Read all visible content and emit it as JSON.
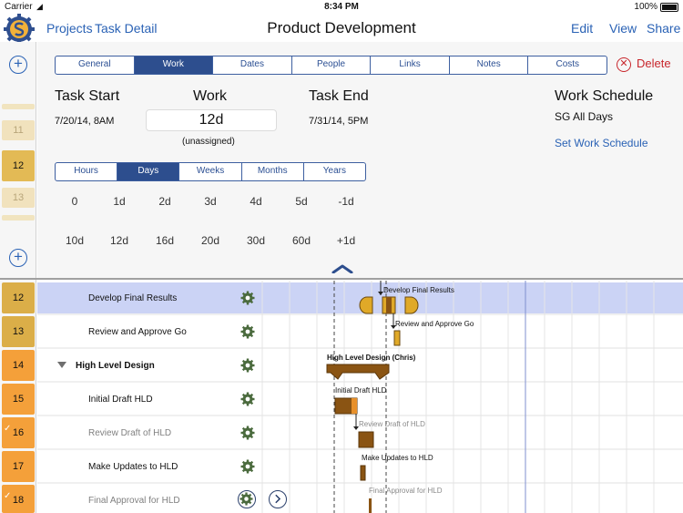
{
  "status_bar": {
    "carrier": "Carrier",
    "time": "8:34 PM",
    "battery": "100%"
  },
  "nav": {
    "projects": "Projects",
    "task_detail": "Task Detail",
    "title": "Product Development",
    "edit": "Edit",
    "view": "View",
    "share": "Share"
  },
  "tabs": [
    {
      "label": "General",
      "active": false
    },
    {
      "label": "Work",
      "active": true
    },
    {
      "label": "Dates",
      "active": false
    },
    {
      "label": "People",
      "active": false
    },
    {
      "label": "Links",
      "active": false
    },
    {
      "label": "Notes",
      "active": false
    },
    {
      "label": "Costs",
      "active": false
    }
  ],
  "delete_label": "Delete",
  "task_start": {
    "heading": "Task Start",
    "value": "7/20/14, 8AM"
  },
  "work": {
    "heading": "Work",
    "value": "12d",
    "assignment": "(unassigned)"
  },
  "task_end": {
    "heading": "Task End",
    "value": "7/31/14, 5PM"
  },
  "schedule": {
    "heading": "Work Schedule",
    "value": "SG All Days",
    "link": "Set Work Schedule"
  },
  "units": [
    {
      "label": "Hours",
      "active": false
    },
    {
      "label": "Days",
      "active": true
    },
    {
      "label": "Weeks",
      "active": false
    },
    {
      "label": "Months",
      "active": false
    },
    {
      "label": "Years",
      "active": false
    }
  ],
  "quick_row1": [
    "0",
    "1d",
    "2d",
    "3d",
    "4d",
    "5d",
    "-1d"
  ],
  "quick_row2": [
    "10d",
    "12d",
    "16d",
    "20d",
    "30d",
    "60d",
    "+1d"
  ],
  "mini_rows": [
    "11",
    "12",
    "13"
  ],
  "rows": [
    {
      "num": "12",
      "name": "Develop Final Results",
      "color": "#d9ac44",
      "selected": true,
      "bold": false,
      "gray": false,
      "checked": false,
      "summary": false,
      "indent": 1
    },
    {
      "num": "13",
      "name": "Review and Approve Go",
      "color": "#d9ac44",
      "selected": false,
      "bold": false,
      "gray": false,
      "checked": false,
      "summary": false,
      "indent": 1
    },
    {
      "num": "14",
      "name": "High Level Design",
      "color": "#f4a03a",
      "selected": false,
      "bold": true,
      "gray": false,
      "checked": false,
      "summary": true,
      "indent": 0
    },
    {
      "num": "15",
      "name": "Initial Draft HLD",
      "color": "#f4a03a",
      "selected": false,
      "bold": false,
      "gray": false,
      "checked": false,
      "summary": false,
      "indent": 1
    },
    {
      "num": "16",
      "name": "Review Draft of HLD",
      "color": "#f4a03a",
      "selected": false,
      "bold": false,
      "gray": true,
      "checked": true,
      "summary": false,
      "indent": 1
    },
    {
      "num": "17",
      "name": "Make Updates to HLD",
      "color": "#f4a03a",
      "selected": false,
      "bold": false,
      "gray": false,
      "checked": false,
      "summary": false,
      "indent": 1
    },
    {
      "num": "18",
      "name": "Final Approval for HLD",
      "color": "#f4a03a",
      "selected": false,
      "bold": false,
      "gray": true,
      "checked": true,
      "summary": false,
      "indent": 1
    }
  ],
  "gantt_labels": {
    "develop": "Develop Final Results",
    "review": "Review and Approve Go",
    "hld": "High Level Design (Chris)",
    "initial": "Initial Draft HLD",
    "review_draft": "Review Draft of HLD",
    "updates": "Make Updates to HLD",
    "final": "Final Approval for HLD"
  },
  "colors": {
    "accent": "#2a62b5",
    "selected_row": "#cbd3f5",
    "delete": "#c8262c",
    "gear": "#4b6b3e",
    "bar_dark": "#8a5413",
    "bar_gold": "#e0a928",
    "bar_orange": "#d8821d"
  }
}
